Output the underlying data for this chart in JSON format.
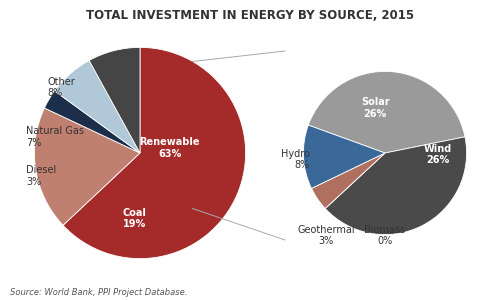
{
  "title": "TOTAL INVESTMENT IN ENERGY BY SOURCE, 2015",
  "source_text": "Source: World Bank, PPI Project Database.",
  "main_labels": [
    "Renewable",
    "Coal",
    "Diesel",
    "Natural Gas",
    "Other"
  ],
  "main_values": [
    63,
    19,
    3,
    7,
    8
  ],
  "main_colors": [
    "#a52a2a",
    "#c08070",
    "#1c2e4a",
    "#b0c8d8",
    "#454545"
  ],
  "sub_labels": [
    "Solar",
    "Wind",
    "Biomass",
    "Geothermal",
    "Hydro"
  ],
  "sub_values": [
    26,
    26,
    0,
    3,
    8
  ],
  "sub_colors": [
    "#9a9a9a",
    "#4a4a4a",
    "#c08878",
    "#b07060",
    "#3a6898"
  ],
  "background_color": "#ffffff",
  "title_fontsize": 8.5,
  "label_fontsize": 7.0,
  "source_fontsize": 6.0
}
